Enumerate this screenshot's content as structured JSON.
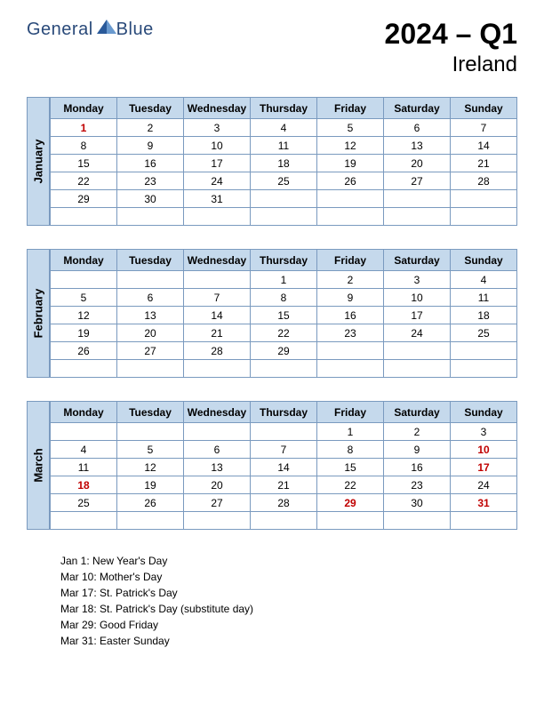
{
  "logo": {
    "text": "General",
    "text2": "Blue"
  },
  "title": {
    "main": "2024 – Q1",
    "sub": "Ireland"
  },
  "day_headers": [
    "Monday",
    "Tuesday",
    "Wednesday",
    "Thursday",
    "Friday",
    "Saturday",
    "Sunday"
  ],
  "months": [
    {
      "name": "January",
      "rows": [
        [
          {
            "d": "1",
            "h": true
          },
          {
            "d": "2"
          },
          {
            "d": "3"
          },
          {
            "d": "4"
          },
          {
            "d": "5"
          },
          {
            "d": "6"
          },
          {
            "d": "7"
          }
        ],
        [
          {
            "d": "8"
          },
          {
            "d": "9"
          },
          {
            "d": "10"
          },
          {
            "d": "11"
          },
          {
            "d": "12"
          },
          {
            "d": "13"
          },
          {
            "d": "14"
          }
        ],
        [
          {
            "d": "15"
          },
          {
            "d": "16"
          },
          {
            "d": "17"
          },
          {
            "d": "18"
          },
          {
            "d": "19"
          },
          {
            "d": "20"
          },
          {
            "d": "21"
          }
        ],
        [
          {
            "d": "22"
          },
          {
            "d": "23"
          },
          {
            "d": "24"
          },
          {
            "d": "25"
          },
          {
            "d": "26"
          },
          {
            "d": "27"
          },
          {
            "d": "28"
          }
        ],
        [
          {
            "d": "29"
          },
          {
            "d": "30"
          },
          {
            "d": "31"
          },
          {
            "d": ""
          },
          {
            "d": ""
          },
          {
            "d": ""
          },
          {
            "d": ""
          }
        ],
        [
          {
            "d": ""
          },
          {
            "d": ""
          },
          {
            "d": ""
          },
          {
            "d": ""
          },
          {
            "d": ""
          },
          {
            "d": ""
          },
          {
            "d": ""
          }
        ]
      ]
    },
    {
      "name": "February",
      "rows": [
        [
          {
            "d": ""
          },
          {
            "d": ""
          },
          {
            "d": ""
          },
          {
            "d": "1"
          },
          {
            "d": "2"
          },
          {
            "d": "3"
          },
          {
            "d": "4"
          }
        ],
        [
          {
            "d": "5"
          },
          {
            "d": "6"
          },
          {
            "d": "7"
          },
          {
            "d": "8"
          },
          {
            "d": "9"
          },
          {
            "d": "10"
          },
          {
            "d": "11"
          }
        ],
        [
          {
            "d": "12"
          },
          {
            "d": "13"
          },
          {
            "d": "14"
          },
          {
            "d": "15"
          },
          {
            "d": "16"
          },
          {
            "d": "17"
          },
          {
            "d": "18"
          }
        ],
        [
          {
            "d": "19"
          },
          {
            "d": "20"
          },
          {
            "d": "21"
          },
          {
            "d": "22"
          },
          {
            "d": "23"
          },
          {
            "d": "24"
          },
          {
            "d": "25"
          }
        ],
        [
          {
            "d": "26"
          },
          {
            "d": "27"
          },
          {
            "d": "28"
          },
          {
            "d": "29"
          },
          {
            "d": ""
          },
          {
            "d": ""
          },
          {
            "d": ""
          }
        ],
        [
          {
            "d": ""
          },
          {
            "d": ""
          },
          {
            "d": ""
          },
          {
            "d": ""
          },
          {
            "d": ""
          },
          {
            "d": ""
          },
          {
            "d": ""
          }
        ]
      ]
    },
    {
      "name": "March",
      "rows": [
        [
          {
            "d": ""
          },
          {
            "d": ""
          },
          {
            "d": ""
          },
          {
            "d": ""
          },
          {
            "d": "1"
          },
          {
            "d": "2"
          },
          {
            "d": "3"
          }
        ],
        [
          {
            "d": "4"
          },
          {
            "d": "5"
          },
          {
            "d": "6"
          },
          {
            "d": "7"
          },
          {
            "d": "8"
          },
          {
            "d": "9"
          },
          {
            "d": "10",
            "h": true
          }
        ],
        [
          {
            "d": "11"
          },
          {
            "d": "12"
          },
          {
            "d": "13"
          },
          {
            "d": "14"
          },
          {
            "d": "15"
          },
          {
            "d": "16"
          },
          {
            "d": "17",
            "h": true
          }
        ],
        [
          {
            "d": "18",
            "h": true
          },
          {
            "d": "19"
          },
          {
            "d": "20"
          },
          {
            "d": "21"
          },
          {
            "d": "22"
          },
          {
            "d": "23"
          },
          {
            "d": "24"
          }
        ],
        [
          {
            "d": "25"
          },
          {
            "d": "26"
          },
          {
            "d": "27"
          },
          {
            "d": "28"
          },
          {
            "d": "29",
            "h": true
          },
          {
            "d": "30"
          },
          {
            "d": "31",
            "h": true
          }
        ],
        [
          {
            "d": ""
          },
          {
            "d": ""
          },
          {
            "d": ""
          },
          {
            "d": ""
          },
          {
            "d": ""
          },
          {
            "d": ""
          },
          {
            "d": ""
          }
        ]
      ]
    }
  ],
  "holidays": [
    "Jan 1: New Year's Day",
    "Mar 10: Mother's Day",
    "Mar 17: St. Patrick's Day",
    "Mar 18: St. Patrick's Day (substitute day)",
    "Mar 29: Good Friday",
    "Mar 31: Easter Sunday"
  ],
  "colors": {
    "header_bg": "#c5d9ec",
    "border": "#7a9abf",
    "holiday_text": "#c00000",
    "logo_text": "#2a4a7a"
  }
}
